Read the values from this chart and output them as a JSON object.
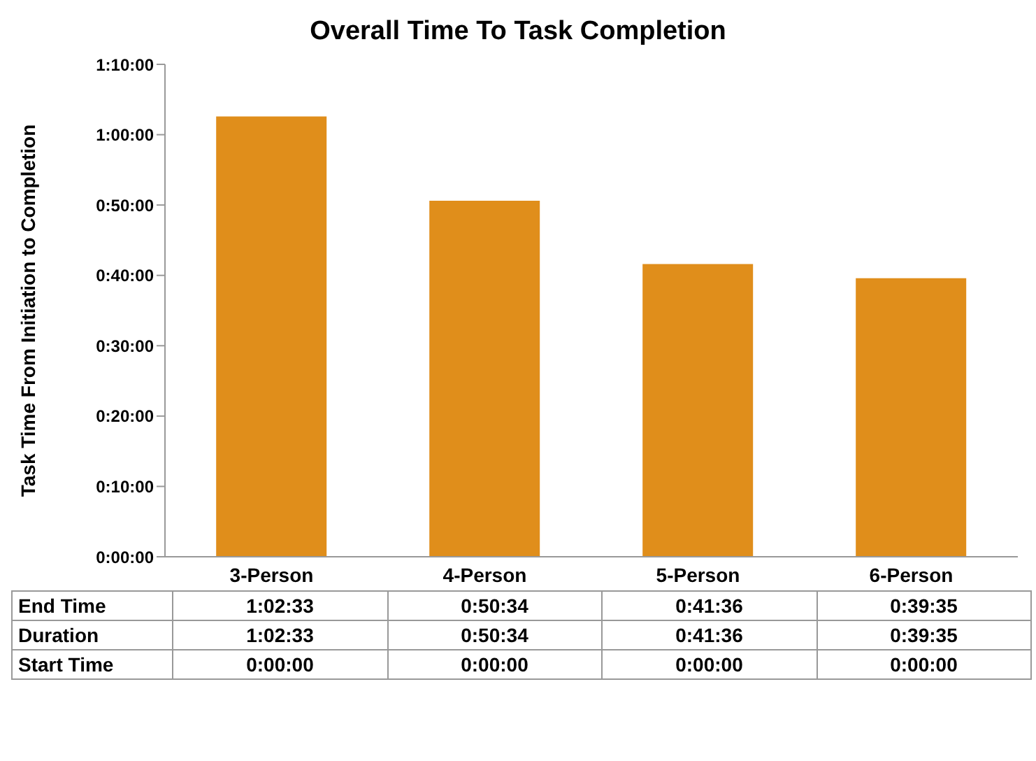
{
  "chart_data": {
    "type": "bar",
    "title": "Overall Time To Task Completion",
    "ylabel": "Task Time From Initiation to Completion",
    "categories": [
      "3-Person",
      "4-Person",
      "5-Person",
      "6-Person"
    ],
    "values": [
      62.6,
      50.6,
      41.6,
      39.6
    ],
    "color": "#e08e1b",
    "ylim": [
      0,
      70
    ],
    "yticks": [
      {
        "value": 0,
        "label": "0:00:00"
      },
      {
        "value": 10,
        "label": "0:10:00"
      },
      {
        "value": 20,
        "label": "0:20:00"
      },
      {
        "value": 30,
        "label": "0:30:00"
      },
      {
        "value": 40,
        "label": "0:40:00"
      },
      {
        "value": 50,
        "label": "0:50:00"
      },
      {
        "value": 60,
        "label": "1:00:00"
      },
      {
        "value": 70,
        "label": "1:10:00"
      }
    ],
    "grid": false,
    "legend": false,
    "annotations": [
      "End Time",
      "1:02:33",
      "0:50:34",
      "0:41:36",
      "0:39:35",
      "Duration",
      "1:02:33",
      "0:50:34",
      "0:41:36",
      "0:39:35",
      "Start Time",
      "0:00:00",
      "0:00:00",
      "0:00:00",
      "0:00:00"
    ]
  }
}
